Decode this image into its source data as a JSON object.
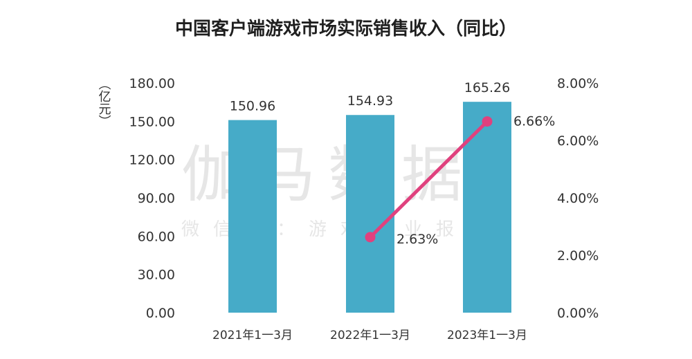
{
  "chart_data": {
    "type": "bar",
    "title": "中国客户端游戏市场实际销售收入（同比）",
    "ylabel": "（亿元）",
    "categories": [
      "2021年1一3月",
      "2022年1一3月",
      "2023年1一3月"
    ],
    "series": [
      {
        "type": "bar",
        "axis": "left",
        "values": [
          150.96,
          154.93,
          165.26
        ],
        "labels": [
          "150.96",
          "154.93",
          "165.26"
        ],
        "color": "#46abc8"
      },
      {
        "type": "line",
        "axis": "right",
        "values": [
          null,
          2.63,
          6.66
        ],
        "labels": [
          "",
          "2.63%",
          "6.66%"
        ],
        "color": "#e0417e"
      }
    ],
    "y_left": {
      "range": [
        0,
        180
      ],
      "ticks": [
        "0.00",
        "30.00",
        "60.00",
        "90.00",
        "120.00",
        "150.00",
        "180.00"
      ]
    },
    "y_right": {
      "range": [
        0,
        8
      ],
      "ticks": [
        "0.00%",
        "2.00%",
        "4.00%",
        "6.00%",
        "8.00%"
      ]
    },
    "grid": false,
    "legend": "none"
  },
  "watermark": {
    "main": "伽马数据",
    "sub": "微信号：游戏产业报告"
  }
}
